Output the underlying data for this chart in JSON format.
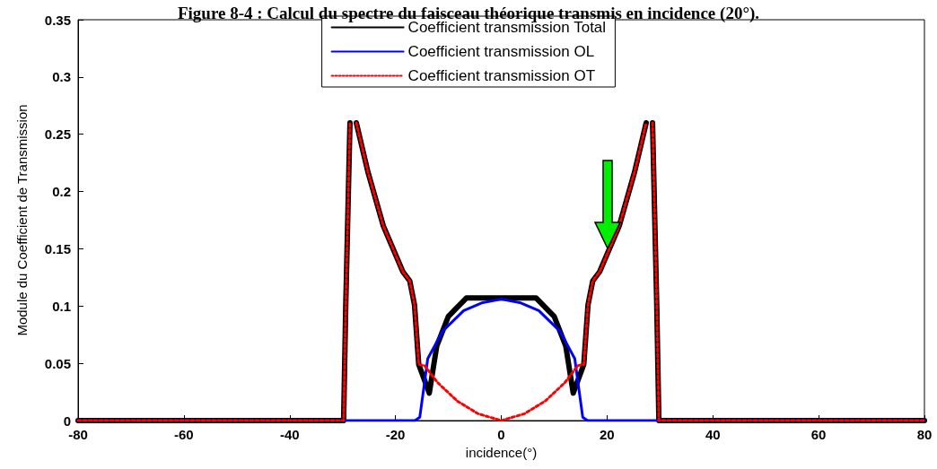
{
  "chart_data": {
    "type": "line",
    "title": "Figure 8-4 : Calcul du spectre du faisceau théorique transmis en incidence (20°).",
    "xlabel": "incidence(°)",
    "ylabel": "Module du Coefficient de Transmission",
    "xlim": [
      -80,
      80
    ],
    "xticks": [
      -80,
      -60,
      -40,
      -20,
      0,
      20,
      40,
      60,
      80
    ],
    "ylim": [
      0,
      0.35
    ],
    "yticks": [
      0,
      0.05,
      0.1,
      0.15,
      0.2,
      0.25,
      0.3,
      0.35
    ],
    "grid": false,
    "legend": "top",
    "marker": "none",
    "series": [
      {
        "name": "Coefficient transmission Total",
        "color": "#000000",
        "line_style": "solid",
        "x": [
          -80,
          -29.8,
          -29.6,
          -29.4,
          -28.9,
          -28.6,
          -28,
          -27.4,
          -25.2,
          -22.3,
          -18.6,
          -17.3,
          -16.4,
          -15.6,
          -13.6,
          -12.2,
          -10,
          -6.6,
          6.6,
          10,
          12.2,
          13.6,
          15.6,
          16.4,
          17.3,
          18.6,
          22.3,
          25.2,
          27.4,
          28,
          28.6,
          28.9,
          29.4,
          29.6,
          29.8,
          80
        ],
        "values": [
          0,
          0,
          0.05,
          0.1,
          0.2,
          0.26,
          null,
          0.26,
          0.217,
          0.17,
          0.13,
          0.122,
          0.101,
          0.049,
          0.024,
          0.065,
          0.091,
          0.107,
          0.107,
          0.091,
          0.065,
          0.024,
          0.049,
          0.101,
          0.122,
          0.13,
          0.17,
          0.217,
          0.26,
          null,
          0.26,
          0.2,
          0.1,
          0.05,
          0,
          0
        ]
      },
      {
        "name": "Coefficient transmission OL",
        "color": "#0000ff",
        "line_style": "solid",
        "x": [
          -80,
          -16.3,
          -15.4,
          -14.6,
          -13.9,
          -11.1,
          -7.1,
          -3.5,
          0,
          3.5,
          7.1,
          11.1,
          13.9,
          14.6,
          15.4,
          16.3,
          80
        ],
        "values": [
          0,
          0,
          0.003,
          0.03,
          0.054,
          0.078,
          0.096,
          0.103,
          0.106,
          0.103,
          0.096,
          0.078,
          0.054,
          0.03,
          0.003,
          0,
          0
        ]
      },
      {
        "name": "Coefficient transmission OT",
        "color": "#ff0000",
        "line_style": "dotted",
        "x": [
          -80,
          -29.8,
          -29.6,
          -29.4,
          -28.9,
          -28.6,
          -28,
          -27.4,
          -25.2,
          -22.3,
          -18.6,
          -17.3,
          -16.4,
          -15.6,
          -14.5,
          -12,
          -8.3,
          -4.4,
          0,
          4.4,
          8.3,
          12,
          14.5,
          15.6,
          16.4,
          17.3,
          18.6,
          22.3,
          25.2,
          27.4,
          28,
          28.6,
          28.9,
          29.4,
          29.6,
          29.8,
          80
        ],
        "values": [
          0,
          0,
          0.05,
          0.1,
          0.2,
          0.26,
          null,
          0.26,
          0.217,
          0.17,
          0.13,
          0.122,
          0.101,
          0.049,
          0.048,
          0.033,
          0.017,
          0.006,
          0,
          0.006,
          0.017,
          0.033,
          0.048,
          0.049,
          0.101,
          0.122,
          0.13,
          0.17,
          0.217,
          0.26,
          null,
          0.26,
          0.2,
          0.1,
          0.05,
          0,
          0
        ]
      }
    ]
  }
}
